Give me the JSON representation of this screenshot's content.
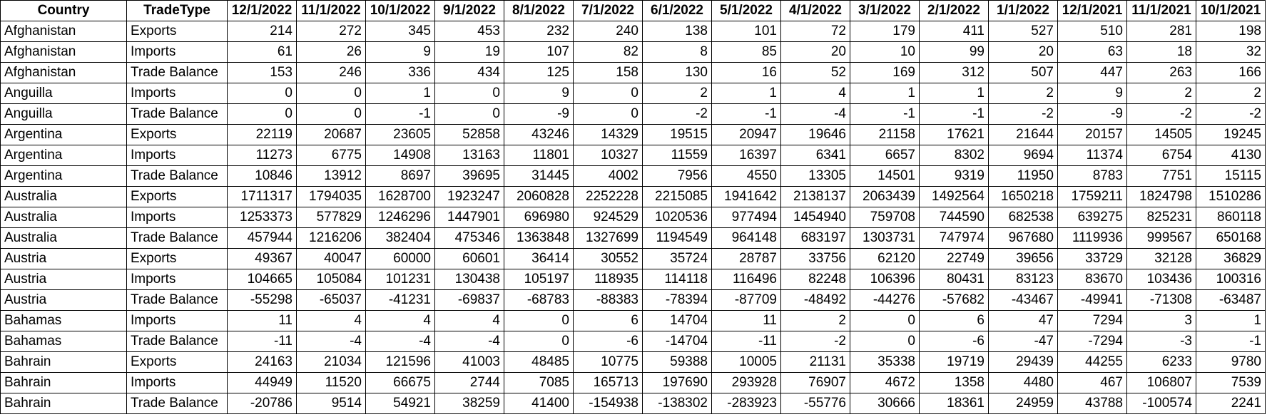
{
  "table": {
    "headers": [
      "Country",
      "TradeType",
      "12/1/2022",
      "11/1/2022",
      "10/1/2022",
      "9/1/2022",
      "8/1/2022",
      "7/1/2022",
      "6/1/2022",
      "5/1/2022",
      "4/1/2022",
      "3/1/2022",
      "2/1/2022",
      "1/1/2022",
      "12/1/2021",
      "11/1/2021",
      "10/1/2021"
    ],
    "rows": [
      [
        "Afghanistan",
        "Exports",
        "214",
        "272",
        "345",
        "453",
        "232",
        "240",
        "138",
        "101",
        "72",
        "179",
        "411",
        "527",
        "510",
        "281",
        "198"
      ],
      [
        "Afghanistan",
        "Imports",
        "61",
        "26",
        "9",
        "19",
        "107",
        "82",
        "8",
        "85",
        "20",
        "10",
        "99",
        "20",
        "63",
        "18",
        "32"
      ],
      [
        "Afghanistan",
        "Trade Balance",
        "153",
        "246",
        "336",
        "434",
        "125",
        "158",
        "130",
        "16",
        "52",
        "169",
        "312",
        "507",
        "447",
        "263",
        "166"
      ],
      [
        "Anguilla",
        "Imports",
        "0",
        "0",
        "1",
        "0",
        "9",
        "0",
        "2",
        "1",
        "4",
        "1",
        "1",
        "2",
        "9",
        "2",
        "2"
      ],
      [
        "Anguilla",
        "Trade Balance",
        "0",
        "0",
        "-1",
        "0",
        "-9",
        "0",
        "-2",
        "-1",
        "-4",
        "-1",
        "-1",
        "-2",
        "-9",
        "-2",
        "-2"
      ],
      [
        "Argentina",
        "Exports",
        "22119",
        "20687",
        "23605",
        "52858",
        "43246",
        "14329",
        "19515",
        "20947",
        "19646",
        "21158",
        "17621",
        "21644",
        "20157",
        "14505",
        "19245"
      ],
      [
        "Argentina",
        "Imports",
        "11273",
        "6775",
        "14908",
        "13163",
        "11801",
        "10327",
        "11559",
        "16397",
        "6341",
        "6657",
        "8302",
        "9694",
        "11374",
        "6754",
        "4130"
      ],
      [
        "Argentina",
        "Trade Balance",
        "10846",
        "13912",
        "8697",
        "39695",
        "31445",
        "4002",
        "7956",
        "4550",
        "13305",
        "14501",
        "9319",
        "11950",
        "8783",
        "7751",
        "15115"
      ],
      [
        "Australia",
        "Exports",
        "1711317",
        "1794035",
        "1628700",
        "1923247",
        "2060828",
        "2252228",
        "2215085",
        "1941642",
        "2138137",
        "2063439",
        "1492564",
        "1650218",
        "1759211",
        "1824798",
        "1510286"
      ],
      [
        "Australia",
        "Imports",
        "1253373",
        "577829",
        "1246296",
        "1447901",
        "696980",
        "924529",
        "1020536",
        "977494",
        "1454940",
        "759708",
        "744590",
        "682538",
        "639275",
        "825231",
        "860118"
      ],
      [
        "Australia",
        "Trade Balance",
        "457944",
        "1216206",
        "382404",
        "475346",
        "1363848",
        "1327699",
        "1194549",
        "964148",
        "683197",
        "1303731",
        "747974",
        "967680",
        "1119936",
        "999567",
        "650168"
      ],
      [
        "Austria",
        "Exports",
        "49367",
        "40047",
        "60000",
        "60601",
        "36414",
        "30552",
        "35724",
        "28787",
        "33756",
        "62120",
        "22749",
        "39656",
        "33729",
        "32128",
        "36829"
      ],
      [
        "Austria",
        "Imports",
        "104665",
        "105084",
        "101231",
        "130438",
        "105197",
        "118935",
        "114118",
        "116496",
        "82248",
        "106396",
        "80431",
        "83123",
        "83670",
        "103436",
        "100316"
      ],
      [
        "Austria",
        "Trade Balance",
        "-55298",
        "-65037",
        "-41231",
        "-69837",
        "-68783",
        "-88383",
        "-78394",
        "-87709",
        "-48492",
        "-44276",
        "-57682",
        "-43467",
        "-49941",
        "-71308",
        "-63487"
      ],
      [
        "Bahamas",
        "Imports",
        "11",
        "4",
        "4",
        "4",
        "0",
        "6",
        "14704",
        "11",
        "2",
        "0",
        "6",
        "47",
        "7294",
        "3",
        "1"
      ],
      [
        "Bahamas",
        "Trade Balance",
        "-11",
        "-4",
        "-4",
        "-4",
        "0",
        "-6",
        "-14704",
        "-11",
        "-2",
        "0",
        "-6",
        "-47",
        "-7294",
        "-3",
        "-1"
      ],
      [
        "Bahrain",
        "Exports",
        "24163",
        "21034",
        "121596",
        "41003",
        "48485",
        "10775",
        "59388",
        "10005",
        "21131",
        "35338",
        "19719",
        "29439",
        "44255",
        "6233",
        "9780"
      ],
      [
        "Bahrain",
        "Imports",
        "44949",
        "11520",
        "66675",
        "2744",
        "7085",
        "165713",
        "197690",
        "293928",
        "76907",
        "4672",
        "1358",
        "4480",
        "467",
        "106807",
        "7539"
      ],
      [
        "Bahrain",
        "Trade Balance",
        "-20786",
        "9514",
        "54921",
        "38259",
        "41400",
        "-154938",
        "-138302",
        "-283923",
        "-55776",
        "30666",
        "18361",
        "24959",
        "43788",
        "-100574",
        "2241"
      ]
    ]
  }
}
